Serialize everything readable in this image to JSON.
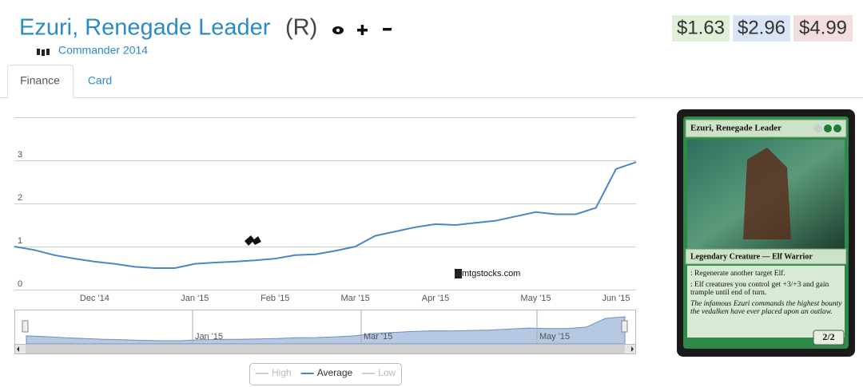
{
  "header": {
    "title": "Ezuri, Renegade Leader",
    "rarity": "(R)",
    "set": "Commander 2014",
    "prices": [
      "$1.63",
      "$2.96",
      "$4.99"
    ]
  },
  "tabs": [
    "Finance",
    "Card"
  ],
  "chart_data": {
    "type": "line",
    "categories": [
      null,
      null,
      null,
      null,
      "Dec '14",
      null,
      null,
      null,
      null,
      "Jan '15",
      null,
      null,
      null,
      "Feb '15",
      null,
      null,
      null,
      "Mar '15",
      null,
      null,
      null,
      "Apr '15",
      null,
      null,
      null,
      null,
      "May '15",
      null,
      null,
      null,
      "Jun '15",
      null
    ],
    "series": [
      {
        "name": "High",
        "color": "#cccccc",
        "visible": false
      },
      {
        "name": "Average",
        "color": "#4a86c8",
        "visible": true,
        "values": [
          1.0,
          0.92,
          0.8,
          0.72,
          0.65,
          0.6,
          0.53,
          0.5,
          0.5,
          0.6,
          0.63,
          0.65,
          0.68,
          0.72,
          0.8,
          0.82,
          0.9,
          1.0,
          1.25,
          1.35,
          1.45,
          1.52,
          1.5,
          1.55,
          1.6,
          1.7,
          1.8,
          1.75,
          1.75,
          1.9,
          2.8,
          2.96
        ]
      },
      {
        "name": "Low",
        "color": "#cccccc",
        "visible": false
      }
    ],
    "ylim": [
      0,
      4
    ],
    "yticks": [
      0,
      1,
      2,
      3
    ],
    "grid": true,
    "watermark": "mtgstocks.com",
    "navigator_labels": [
      "Jan '15",
      "Mar '15",
      "May '15"
    ]
  },
  "card": {
    "name": "Ezuri, Renegade Leader",
    "type_line": "Legendary Creature — Elf Warrior",
    "rules": [
      ": Regenerate another target Elf.",
      ": Elf creatures you control get +3/+3 and gain trample until end of turn."
    ],
    "flavor": "The infamous Ezuri commands the highest bounty the vedalken have ever placed upon an outlaw.",
    "pt": "2/2"
  }
}
